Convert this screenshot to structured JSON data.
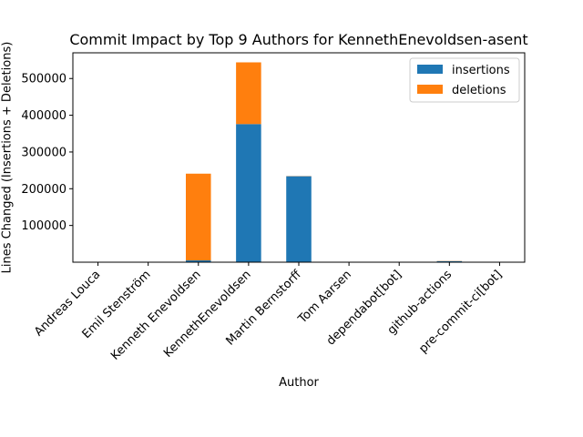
{
  "chart_data": {
    "type": "bar",
    "stacked": true,
    "title": "Commit Impact by Top 9 Authors for KennethEnevoldsen-asent",
    "xlabel": "Author",
    "ylabel": "Lines Changed (Insertions + Deletions)",
    "ylim": [
      0,
      570000
    ],
    "yticks": [
      100000,
      200000,
      300000,
      400000,
      500000
    ],
    "categories": [
      "Andreas Louca",
      "Emil Stenström",
      "Kenneth Enevoldsen",
      "KennethEnevoldsen",
      "Martin Bernstorff",
      "Tom Aarsen",
      "dependabot[bot]",
      "github-actions",
      "pre-commit-ci[bot]"
    ],
    "series": [
      {
        "name": "insertions",
        "color": "#1f77b4",
        "values": [
          150,
          100,
          5000,
          376000,
          234000,
          200,
          300,
          3000,
          150
        ]
      },
      {
        "name": "deletions",
        "color": "#ff7f0e",
        "values": [
          50,
          50,
          236000,
          168000,
          500,
          50,
          100,
          500,
          100
        ]
      }
    ],
    "legend_position": "top-right",
    "grid": false
  }
}
